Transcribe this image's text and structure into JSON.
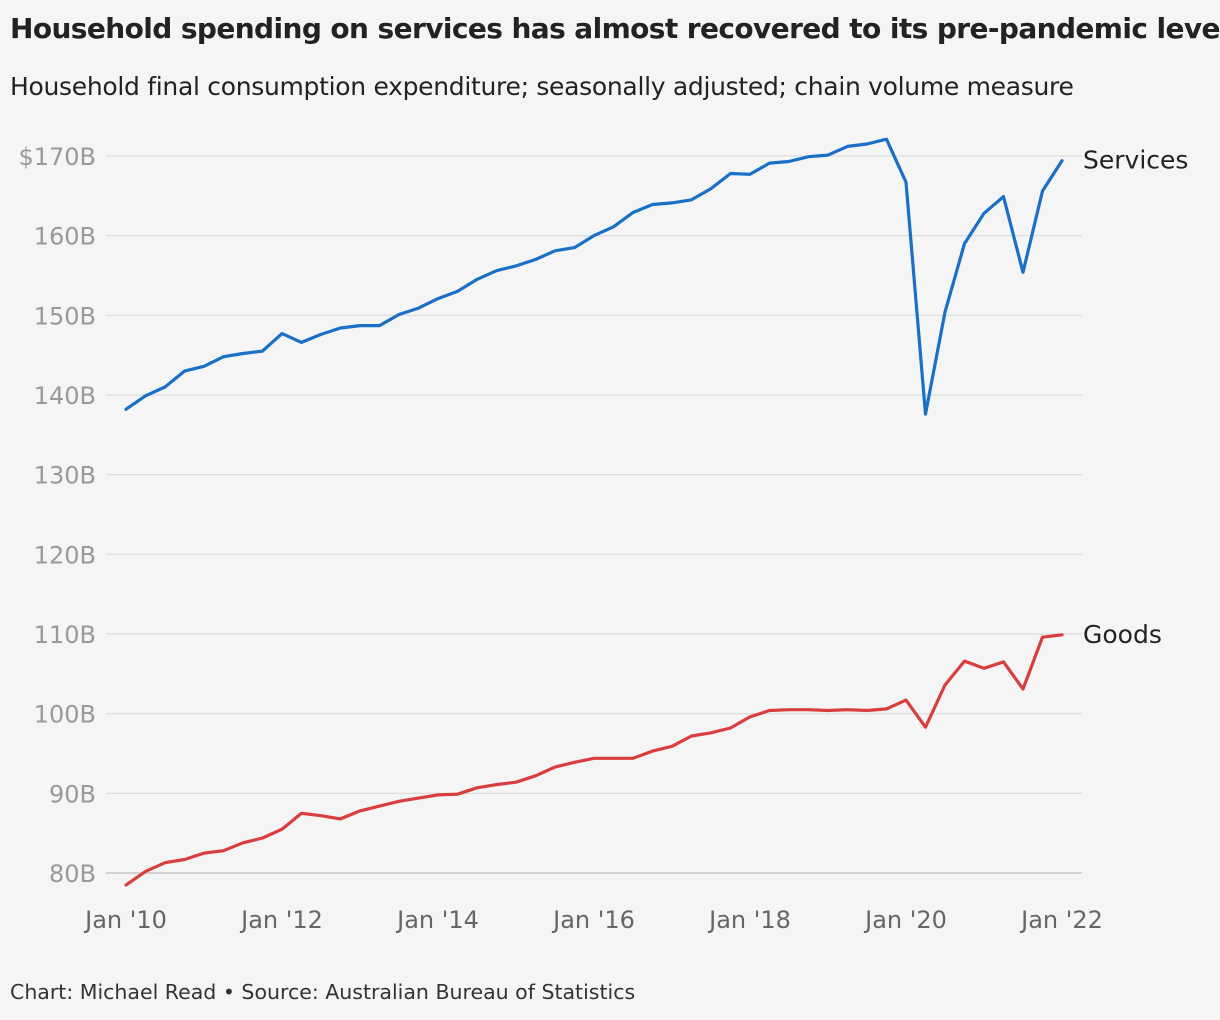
{
  "title": "Household spending on services has almost recovered to its pre-pandemic level",
  "subtitle": "Household final consumption expenditure; seasonally adjusted; chain volume measure",
  "footer": "Chart: Michael Read • Source: Australian Bureau of Statistics",
  "chart_data": {
    "type": "line",
    "x_tick_labels": [
      "Jan '10",
      "Jan '12",
      "Jan '14",
      "Jan '16",
      "Jan '18",
      "Jan '20",
      "Jan '22"
    ],
    "y_tick_labels": [
      "$170B",
      "160B",
      "150B",
      "140B",
      "130B",
      "120B",
      "110B",
      "100B",
      "90B",
      "80B"
    ],
    "y_ticks": [
      170,
      160,
      150,
      140,
      130,
      120,
      110,
      100,
      90,
      80
    ],
    "ylim": [
      79,
      172
    ],
    "xlim": [
      "2010-01",
      "2022-01"
    ],
    "grid": true,
    "x": [
      "2010-01",
      "2010-04",
      "2010-07",
      "2010-10",
      "2011-01",
      "2011-04",
      "2011-07",
      "2011-10",
      "2012-01",
      "2012-04",
      "2012-07",
      "2012-10",
      "2013-01",
      "2013-04",
      "2013-07",
      "2013-10",
      "2014-01",
      "2014-04",
      "2014-07",
      "2014-10",
      "2015-01",
      "2015-04",
      "2015-07",
      "2015-10",
      "2016-01",
      "2016-04",
      "2016-07",
      "2016-10",
      "2017-01",
      "2017-04",
      "2017-07",
      "2017-10",
      "2018-01",
      "2018-04",
      "2018-07",
      "2018-10",
      "2019-01",
      "2019-04",
      "2019-07",
      "2019-10",
      "2020-01",
      "2020-04",
      "2020-07",
      "2020-10",
      "2021-01",
      "2021-04",
      "2021-07",
      "2021-10",
      "2022-01"
    ],
    "series": [
      {
        "name": "Services",
        "color": "#1a6fc7",
        "values": [
          138.2,
          139.9,
          141.0,
          143.0,
          143.6,
          144.8,
          145.2,
          145.5,
          147.7,
          146.6,
          147.6,
          148.4,
          148.7,
          148.7,
          150.1,
          150.9,
          152.1,
          153.0,
          154.5,
          155.6,
          156.2,
          157.0,
          158.1,
          158.5,
          160.0,
          161.1,
          162.9,
          163.9,
          164.1,
          164.5,
          165.9,
          167.8,
          167.7,
          169.1,
          169.3,
          169.9,
          170.1,
          171.2,
          171.5,
          172.1,
          166.7,
          137.6,
          150.4,
          159.0,
          162.8,
          164.9,
          155.4,
          165.6,
          169.4
        ]
      },
      {
        "name": "Goods",
        "color": "#d93e3e",
        "values": [
          78.5,
          80.2,
          81.3,
          81.7,
          82.5,
          82.8,
          83.8,
          84.4,
          85.5,
          87.5,
          87.2,
          86.8,
          87.8,
          88.4,
          89.0,
          89.4,
          89.8,
          89.9,
          90.7,
          91.1,
          91.4,
          92.2,
          93.3,
          93.9,
          94.4,
          94.4,
          94.4,
          95.3,
          95.9,
          97.2,
          97.6,
          98.2,
          99.6,
          100.4,
          100.5,
          100.5,
          100.4,
          100.5,
          100.4,
          100.6,
          101.7,
          98.3,
          103.6,
          106.6,
          105.7,
          106.5,
          103.1,
          109.6,
          109.9
        ]
      }
    ]
  }
}
